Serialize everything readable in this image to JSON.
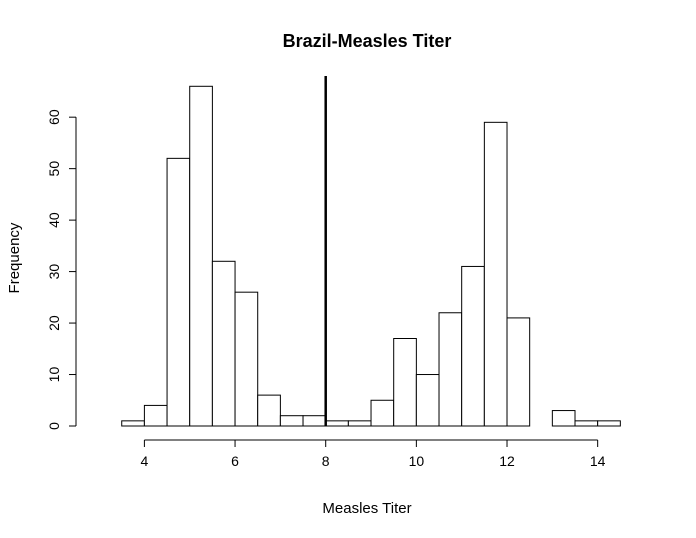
{
  "chart_data": {
    "type": "bar",
    "title": "Brazil-Measles Titer",
    "xlabel": "Measles Titer",
    "ylabel": "Frequency",
    "bin_width": 0.5,
    "bin_starts": [
      3.5,
      4.0,
      4.5,
      5.0,
      5.5,
      6.0,
      6.5,
      7.0,
      7.5,
      8.0,
      8.5,
      9.0,
      9.5,
      10.0,
      10.5,
      11.0,
      11.5,
      12.0,
      12.5,
      13.0,
      13.5,
      14.0
    ],
    "values": [
      1,
      4,
      52,
      66,
      32,
      26,
      6,
      2,
      2,
      1,
      1,
      5,
      17,
      10,
      22,
      31,
      59,
      21,
      0,
      3,
      1,
      1
    ],
    "xlim": [
      2.8,
      15.0
    ],
    "ylim": [
      0,
      68
    ],
    "x_ticks": [
      4,
      6,
      8,
      10,
      12,
      14
    ],
    "y_ticks": [
      0,
      10,
      20,
      30,
      40,
      50,
      60
    ],
    "reference_line_x": 8,
    "grid": false
  }
}
